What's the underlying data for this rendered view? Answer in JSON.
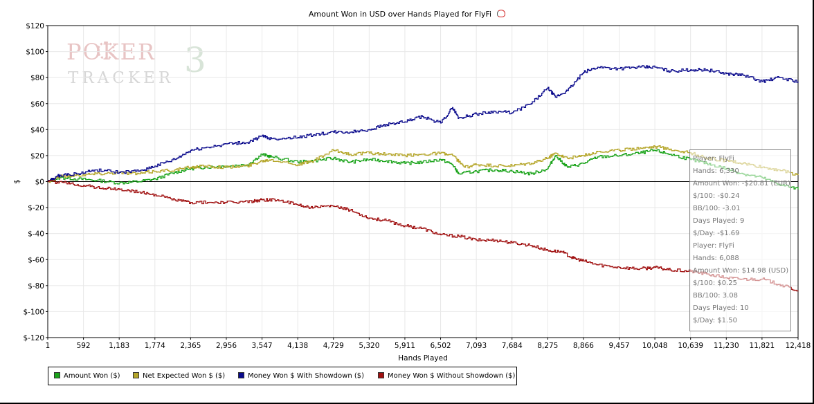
{
  "title": "Amount Won in USD over Hands Played for FlyFi",
  "watermark": {
    "top": "POKER",
    "bottom": "TRACKER",
    "number": "3"
  },
  "colors": {
    "amount_won": "#1aa31a",
    "net_expected": "#b5a62a",
    "with_showdown": "#0a0a8c",
    "without_showdown": "#a01010",
    "background": "#ffffff",
    "grid": "#e8e8e8"
  },
  "chart_data": {
    "type": "line",
    "title": "Amount Won in USD over Hands Played for FlyFi",
    "xlabel": "Hands Played",
    "ylabel": "$",
    "xlim": [
      1,
      12418
    ],
    "ylim": [
      -120,
      120
    ],
    "grid": true,
    "x_ticks": [
      1,
      592,
      1183,
      1774,
      2365,
      2956,
      3547,
      4138,
      4729,
      5320,
      5911,
      6502,
      7093,
      7684,
      8275,
      8866,
      9457,
      10048,
      10639,
      11230,
      11821,
      12418
    ],
    "x_tick_labels": [
      "1",
      "592",
      "1,183",
      "1,774",
      "2,365",
      "2,956",
      "3,547",
      "4,138",
      "4,729",
      "5,320",
      "5,911",
      "6,502",
      "7,093",
      "7,684",
      "8,275",
      "8,866",
      "9,457",
      "10,048",
      "10,639",
      "11,230",
      "11,821",
      "12,418"
    ],
    "y_ticks": [
      120,
      100,
      80,
      60,
      40,
      20,
      0,
      -20,
      -40,
      -60,
      -80,
      -100,
      -120
    ],
    "y_tick_labels": [
      "$120",
      "$100",
      "$80",
      "$60",
      "$40",
      "$20",
      "$0",
      "$-20",
      "$-40",
      "$-60",
      "$-80",
      "$-100",
      "$-120"
    ],
    "legend_position": "bottom-left",
    "series": [
      {
        "name": "Amount Won ($)",
        "color": "#1aa31a",
        "points": [
          [
            1,
            0
          ],
          [
            200,
            3
          ],
          [
            500,
            2
          ],
          [
            800,
            1
          ],
          [
            1183,
            -1
          ],
          [
            1500,
            0
          ],
          [
            1774,
            2
          ],
          [
            2100,
            7
          ],
          [
            2365,
            10
          ],
          [
            2600,
            11
          ],
          [
            2956,
            12
          ],
          [
            3300,
            13
          ],
          [
            3547,
            21
          ],
          [
            3700,
            19
          ],
          [
            4138,
            15
          ],
          [
            4400,
            16
          ],
          [
            4729,
            18
          ],
          [
            5000,
            15
          ],
          [
            5320,
            17
          ],
          [
            5600,
            16
          ],
          [
            5911,
            14
          ],
          [
            6200,
            15
          ],
          [
            6502,
            17
          ],
          [
            6700,
            13
          ],
          [
            6800,
            6
          ],
          [
            7093,
            8
          ],
          [
            7400,
            9
          ],
          [
            7684,
            8
          ],
          [
            8000,
            6
          ],
          [
            8275,
            10
          ],
          [
            8400,
            20
          ],
          [
            8600,
            11
          ],
          [
            8866,
            14
          ],
          [
            9100,
            19
          ],
          [
            9457,
            20
          ],
          [
            9800,
            22
          ],
          [
            10048,
            24
          ],
          [
            10300,
            21
          ],
          [
            10639,
            17
          ],
          [
            10900,
            14
          ],
          [
            11230,
            10
          ],
          [
            11500,
            6
          ],
          [
            11821,
            3
          ],
          [
            12100,
            -2
          ],
          [
            12418,
            -6
          ]
        ]
      },
      {
        "name": "Net Expected Won $ ($)",
        "color": "#b5a62a",
        "points": [
          [
            1,
            0
          ],
          [
            200,
            4
          ],
          [
            500,
            5
          ],
          [
            800,
            6
          ],
          [
            1183,
            7
          ],
          [
            1500,
            6
          ],
          [
            1774,
            8
          ],
          [
            2100,
            9
          ],
          [
            2365,
            11
          ],
          [
            2600,
            12
          ],
          [
            2956,
            11
          ],
          [
            3300,
            12
          ],
          [
            3547,
            16
          ],
          [
            3700,
            17
          ],
          [
            4138,
            13
          ],
          [
            4400,
            16
          ],
          [
            4729,
            24
          ],
          [
            5000,
            21
          ],
          [
            5320,
            22
          ],
          [
            5600,
            21
          ],
          [
            5911,
            20
          ],
          [
            6200,
            21
          ],
          [
            6502,
            22
          ],
          [
            6700,
            20
          ],
          [
            6900,
            11
          ],
          [
            7093,
            13
          ],
          [
            7400,
            12
          ],
          [
            7684,
            12
          ],
          [
            8000,
            14
          ],
          [
            8275,
            18
          ],
          [
            8400,
            22
          ],
          [
            8600,
            18
          ],
          [
            8866,
            20
          ],
          [
            9100,
            23
          ],
          [
            9457,
            24
          ],
          [
            9800,
            26
          ],
          [
            10048,
            27
          ],
          [
            10300,
            25
          ],
          [
            10639,
            22
          ],
          [
            10900,
            18
          ],
          [
            11230,
            16
          ],
          [
            11500,
            14
          ],
          [
            11821,
            11
          ],
          [
            12100,
            9
          ],
          [
            12418,
            5
          ]
        ]
      },
      {
        "name": "Money Won $ With Showdown ($)",
        "color": "#0a0a8c",
        "points": [
          [
            1,
            0
          ],
          [
            200,
            5
          ],
          [
            500,
            6
          ],
          [
            800,
            9
          ],
          [
            1183,
            7
          ],
          [
            1500,
            8
          ],
          [
            1774,
            12
          ],
          [
            2100,
            17
          ],
          [
            2365,
            24
          ],
          [
            2600,
            26
          ],
          [
            2956,
            29
          ],
          [
            3300,
            30
          ],
          [
            3547,
            35
          ],
          [
            3700,
            33
          ],
          [
            4138,
            34
          ],
          [
            4400,
            36
          ],
          [
            4729,
            38
          ],
          [
            5000,
            38
          ],
          [
            5320,
            40
          ],
          [
            5600,
            44
          ],
          [
            5911,
            46
          ],
          [
            6200,
            50
          ],
          [
            6502,
            45
          ],
          [
            6700,
            57
          ],
          [
            6800,
            49
          ],
          [
            7093,
            52
          ],
          [
            7400,
            54
          ],
          [
            7684,
            53
          ],
          [
            8000,
            60
          ],
          [
            8275,
            72
          ],
          [
            8400,
            65
          ],
          [
            8600,
            70
          ],
          [
            8866,
            84
          ],
          [
            9100,
            88
          ],
          [
            9457,
            87
          ],
          [
            9800,
            88
          ],
          [
            10048,
            88
          ],
          [
            10300,
            85
          ],
          [
            10639,
            86
          ],
          [
            10900,
            86
          ],
          [
            11230,
            83
          ],
          [
            11500,
            82
          ],
          [
            11821,
            77
          ],
          [
            12100,
            80
          ],
          [
            12418,
            77
          ]
        ]
      },
      {
        "name": "Money Won $ Without Showdown ($)",
        "color": "#a01010",
        "points": [
          [
            1,
            0
          ],
          [
            300,
            -1
          ],
          [
            592,
            -3
          ],
          [
            900,
            -5
          ],
          [
            1183,
            -6
          ],
          [
            1500,
            -8
          ],
          [
            1774,
            -10
          ],
          [
            2100,
            -14
          ],
          [
            2365,
            -16
          ],
          [
            2800,
            -16
          ],
          [
            3100,
            -16
          ],
          [
            3400,
            -15
          ],
          [
            3547,
            -14
          ],
          [
            3800,
            -14
          ],
          [
            4138,
            -18
          ],
          [
            4400,
            -20
          ],
          [
            4729,
            -19
          ],
          [
            5000,
            -22
          ],
          [
            5320,
            -28
          ],
          [
            5600,
            -30
          ],
          [
            5911,
            -34
          ],
          [
            6200,
            -36
          ],
          [
            6502,
            -41
          ],
          [
            6800,
            -42
          ],
          [
            7093,
            -45
          ],
          [
            7400,
            -45
          ],
          [
            7684,
            -47
          ],
          [
            8000,
            -49
          ],
          [
            8275,
            -53
          ],
          [
            8500,
            -54
          ],
          [
            8700,
            -59
          ],
          [
            8866,
            -61
          ],
          [
            9100,
            -64
          ],
          [
            9457,
            -66
          ],
          [
            9800,
            -67
          ],
          [
            10048,
            -66
          ],
          [
            10300,
            -68
          ],
          [
            10639,
            -69
          ],
          [
            10900,
            -71
          ],
          [
            11230,
            -74
          ],
          [
            11500,
            -75
          ],
          [
            11821,
            -75
          ],
          [
            12100,
            -79
          ],
          [
            12418,
            -84
          ]
        ]
      }
    ]
  },
  "legend": [
    {
      "label": "Amount Won ($)",
      "color": "#1aa31a"
    },
    {
      "label": "Net Expected Won $ ($)",
      "color": "#b5a62a"
    },
    {
      "label": "Money Won $ With Showdown ($)",
      "color": "#0a0a8c"
    },
    {
      "label": "Money Won $ Without Showdown ($)",
      "color": "#a01010"
    }
  ],
  "tooltip": {
    "lines": [
      "Player: FlyFi",
      "Hands: 6,330",
      "Amount Won: -$20.81 (EUR)",
      "$/100: -$0.24",
      "BB/100: -3.01",
      "Days Played: 9",
      "$/Day: -$1.69",
      "Player: FlyFi",
      "Hands: 6,088",
      "Amount Won: $14.98 (USD)",
      "$/100: $0.25",
      "BB/100: 3.08",
      "Days Played: 10",
      "$/Day: $1.50"
    ]
  }
}
